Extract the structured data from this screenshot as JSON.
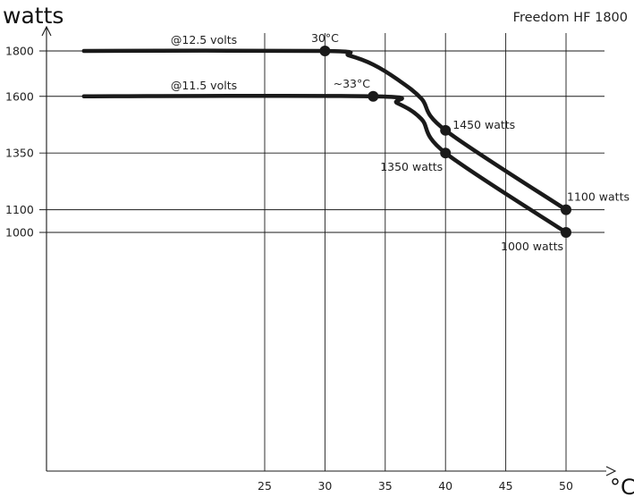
{
  "chart_data": {
    "type": "line",
    "title": "Freedom HF 1800",
    "ylabel": "watts",
    "xlabel": "°C",
    "xlim": [
      10,
      52
    ],
    "ylim": [
      0,
      1900
    ],
    "x_ticks": [
      25,
      30,
      35,
      40,
      45,
      50
    ],
    "y_ticks": [
      1000,
      1100,
      1350,
      1600,
      1800
    ],
    "grid": true,
    "series": [
      {
        "name": "@12.5 volts",
        "points": [
          [
            10,
            1800
          ],
          [
            30,
            1800
          ],
          [
            32,
            1780
          ],
          [
            34,
            1740
          ],
          [
            36,
            1675
          ],
          [
            38,
            1590
          ],
          [
            40,
            1450
          ],
          [
            50,
            1100
          ]
        ],
        "markers": [
          [
            30,
            1800
          ],
          [
            40,
            1450
          ],
          [
            50,
            1100
          ]
        ]
      },
      {
        "name": "@11.5 volts",
        "points": [
          [
            10,
            1600
          ],
          [
            34,
            1600
          ],
          [
            36,
            1570
          ],
          [
            38,
            1500
          ],
          [
            40,
            1350
          ],
          [
            50,
            1000
          ]
        ],
        "markers": [
          [
            34,
            1600
          ],
          [
            40,
            1350
          ],
          [
            50,
            1000
          ]
        ]
      }
    ],
    "annotations": [
      {
        "text": "30°C",
        "x": 30,
        "y": 1800,
        "pos": "above"
      },
      {
        "text": "~33°C",
        "x": 34,
        "y": 1600,
        "pos": "above-left"
      },
      {
        "text": "1450 watts",
        "x": 40,
        "y": 1450,
        "pos": "right"
      },
      {
        "text": "1350 watts",
        "x": 40,
        "y": 1350,
        "pos": "below-left"
      },
      {
        "text": "1100 watts",
        "x": 50,
        "y": 1100,
        "pos": "above"
      },
      {
        "text": "1000 watts",
        "x": 50,
        "y": 1000,
        "pos": "below-left"
      }
    ]
  },
  "colors": {
    "line": "#1a1a1a",
    "background": "#ffffff"
  }
}
